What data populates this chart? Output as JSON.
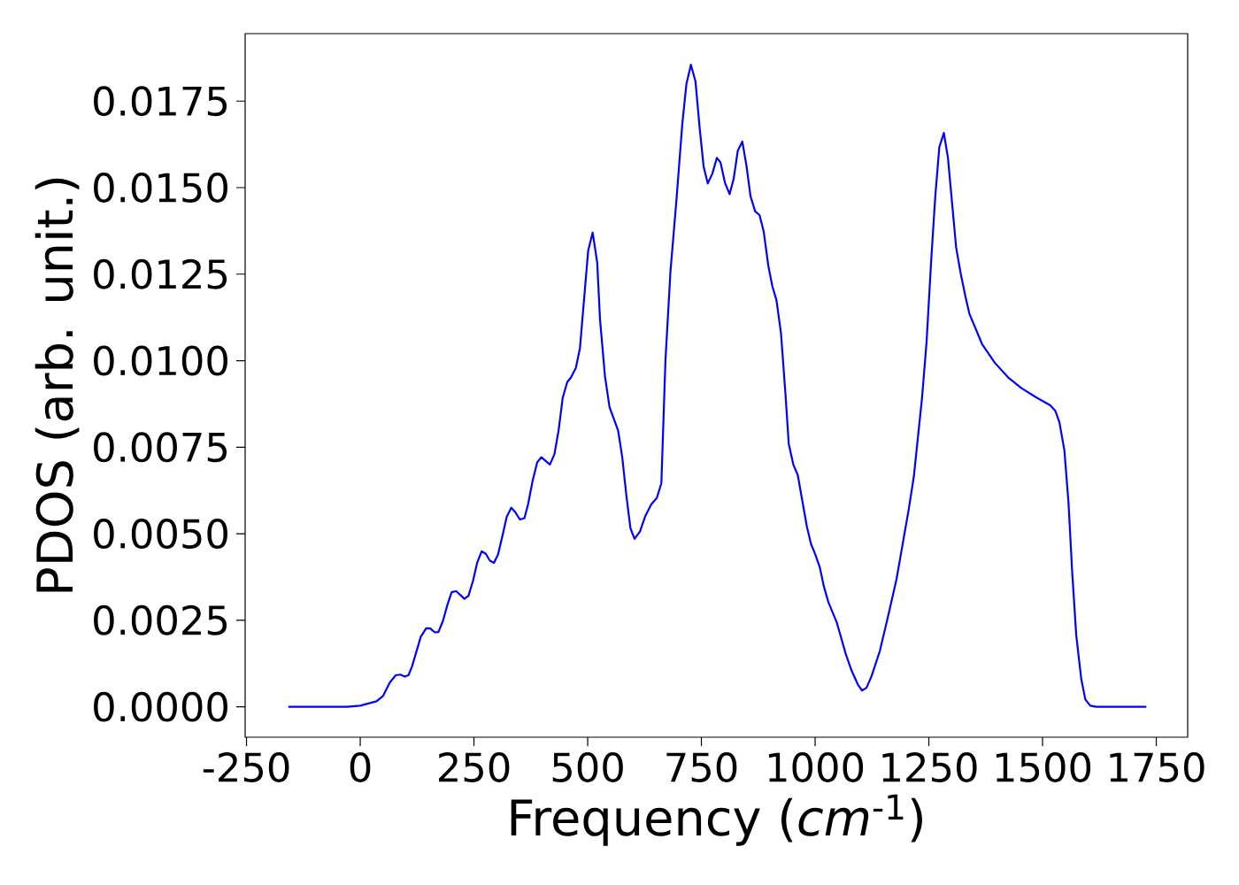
{
  "chart_data": {
    "type": "line",
    "xlabel": "Frequency (*cm*$^{-1}$)",
    "ylabel": "PDOS (arb. unit.)",
    "color": "#0000ff",
    "xlim": [
      -253,
      1819
    ],
    "ylim": [
      -0.00088,
      0.01945
    ],
    "xticks": [
      -250,
      0,
      250,
      500,
      750,
      1000,
      1250,
      1500,
      1750
    ],
    "yticks": [
      {
        "value": 0,
        "label": "0.0000"
      },
      {
        "value": 0.0025,
        "label": "0.0025"
      },
      {
        "value": 0.005,
        "label": "0.0050"
      },
      {
        "value": 0.0075,
        "label": "0.0075"
      },
      {
        "value": 0.01,
        "label": "0.0100"
      },
      {
        "value": 0.0125,
        "label": "0.0125"
      },
      {
        "value": 0.015,
        "label": "0.0150"
      },
      {
        "value": 0.0175,
        "label": "0.0175"
      }
    ],
    "x": [
      -158,
      -29,
      0,
      36,
      50,
      65,
      78,
      88,
      98,
      106,
      114,
      133,
      145,
      154,
      164,
      172,
      182,
      192,
      201,
      211,
      229,
      238,
      248,
      257,
      267,
      276,
      285,
      294,
      303,
      313,
      322,
      332,
      341,
      351,
      361,
      369,
      379,
      389,
      398,
      417,
      427,
      436,
      445,
      455,
      463,
      474,
      483,
      501,
      511,
      521,
      527,
      538,
      548,
      567,
      576,
      585,
      594,
      603,
      615,
      627,
      640,
      652,
      662,
      671,
      682,
      695,
      702,
      708,
      717,
      727,
      737,
      746,
      755,
      764,
      774,
      784,
      792,
      802,
      812,
      821,
      830,
      840,
      849,
      858,
      868,
      878,
      887,
      897,
      906,
      915,
      925,
      935,
      942,
      952,
      962,
      971,
      982,
      991,
      999,
      1010,
      1019,
      1029,
      1048,
      1067,
      1080,
      1094,
      1103,
      1113,
      1124,
      1142,
      1160,
      1179,
      1206,
      1217,
      1235,
      1245,
      1255,
      1264,
      1273,
      1283,
      1292,
      1310,
      1320,
      1330,
      1339,
      1367,
      1395,
      1424,
      1453,
      1486,
      1517,
      1528,
      1537,
      1548,
      1557,
      1565,
      1574,
      1585,
      1594,
      1605,
      1618,
      1728
    ],
    "values": [
      0,
      0,
      3e-05,
      0.00016,
      0.00031,
      0.0007,
      0.00091,
      0.00093,
      0.00087,
      0.00091,
      0.00117,
      0.00202,
      0.00227,
      0.00226,
      0.00215,
      0.00216,
      0.00249,
      0.00296,
      0.00331,
      0.00334,
      0.00312,
      0.00321,
      0.00364,
      0.00416,
      0.00449,
      0.00442,
      0.00422,
      0.00416,
      0.0044,
      0.00496,
      0.00549,
      0.00575,
      0.00562,
      0.00541,
      0.00545,
      0.00585,
      0.00653,
      0.00706,
      0.00721,
      0.007,
      0.0073,
      0.00798,
      0.00892,
      0.00938,
      0.00951,
      0.00979,
      0.01036,
      0.01317,
      0.0137,
      0.01283,
      0.01122,
      0.00955,
      0.00866,
      0.00798,
      0.00721,
      0.00611,
      0.00516,
      0.00485,
      0.00506,
      0.00552,
      0.00585,
      0.00603,
      0.00646,
      0.01002,
      0.01258,
      0.01462,
      0.01581,
      0.01684,
      0.01799,
      0.01855,
      0.01807,
      0.01675,
      0.0156,
      0.01512,
      0.0154,
      0.01586,
      0.01573,
      0.01513,
      0.01481,
      0.01526,
      0.01607,
      0.01633,
      0.01564,
      0.01475,
      0.01432,
      0.0142,
      0.01373,
      0.01275,
      0.01215,
      0.01175,
      0.01079,
      0.009,
      0.0076,
      0.007,
      0.00669,
      0.00601,
      0.0052,
      0.0047,
      0.00445,
      0.00404,
      0.00349,
      0.00303,
      0.00242,
      0.00154,
      0.00105,
      0.00064,
      0.00047,
      0.00055,
      0.00088,
      0.0016,
      0.00259,
      0.00369,
      0.00572,
      0.00665,
      0.00892,
      0.01054,
      0.01286,
      0.01472,
      0.01617,
      0.01658,
      0.01586,
      0.01327,
      0.01252,
      0.01188,
      0.01136,
      0.01048,
      0.00994,
      0.00952,
      0.00921,
      0.00894,
      0.00871,
      0.00855,
      0.00822,
      0.00741,
      0.0059,
      0.00392,
      0.00207,
      0.00081,
      0.00021,
      3e-05,
      0,
      0
    ]
  }
}
